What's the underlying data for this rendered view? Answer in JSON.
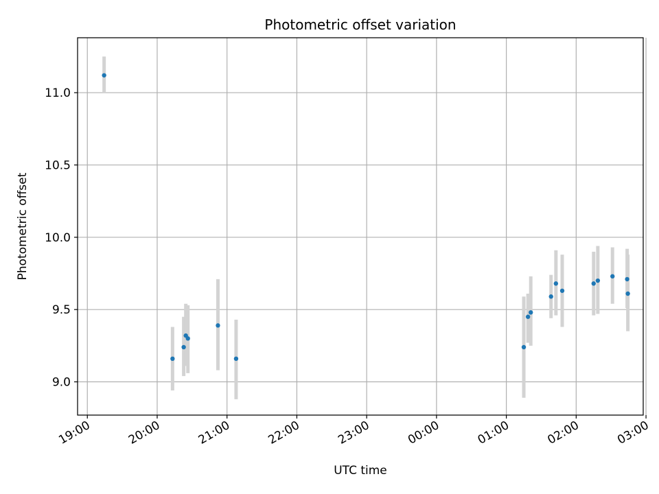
{
  "chart_data": {
    "type": "scatter",
    "title": "Photometric offset variation",
    "xlabel": "UTC time",
    "ylabel": "Photometric offset",
    "grid": true,
    "x_unit": "hours after 19:00 UTC",
    "xlim": [
      -0.14,
      7.96
    ],
    "ylim": [
      8.77,
      11.38
    ],
    "x_ticks": [
      {
        "value": 0,
        "label": "19:00"
      },
      {
        "value": 1,
        "label": "20:00"
      },
      {
        "value": 2,
        "label": "21:00"
      },
      {
        "value": 3,
        "label": "22:00"
      },
      {
        "value": 4,
        "label": "23:00"
      },
      {
        "value": 5,
        "label": "00:00"
      },
      {
        "value": 6,
        "label": "01:00"
      },
      {
        "value": 7,
        "label": "02:00"
      },
      {
        "value": 8,
        "label": "03:00"
      }
    ],
    "y_ticks": [
      {
        "value": 9.0,
        "label": "9.0"
      },
      {
        "value": 9.5,
        "label": "9.5"
      },
      {
        "value": 10.0,
        "label": "10.0"
      },
      {
        "value": 10.5,
        "label": "10.5"
      },
      {
        "value": 11.0,
        "label": "11.0"
      }
    ],
    "series": [
      {
        "name": "Photometric offset",
        "color": "#1f77b4",
        "errorbar_color": "#d3d3d3",
        "points": [
          {
            "x": 0.24,
            "y": 11.12,
            "lo": 11.0,
            "hi": 11.25
          },
          {
            "x": 1.22,
            "y": 9.16,
            "lo": 8.94,
            "hi": 9.38
          },
          {
            "x": 1.38,
            "y": 9.24,
            "lo": 9.04,
            "hi": 9.45
          },
          {
            "x": 1.41,
            "y": 9.32,
            "lo": 9.11,
            "hi": 9.54
          },
          {
            "x": 1.44,
            "y": 9.3,
            "lo": 9.06,
            "hi": 9.53
          },
          {
            "x": 1.87,
            "y": 9.39,
            "lo": 9.08,
            "hi": 9.71
          },
          {
            "x": 2.13,
            "y": 9.16,
            "lo": 8.88,
            "hi": 9.43
          },
          {
            "x": 6.25,
            "y": 9.24,
            "lo": 8.89,
            "hi": 9.59
          },
          {
            "x": 6.31,
            "y": 9.45,
            "lo": 9.27,
            "hi": 9.61
          },
          {
            "x": 6.35,
            "y": 9.48,
            "lo": 9.25,
            "hi": 9.73
          },
          {
            "x": 6.64,
            "y": 9.59,
            "lo": 9.44,
            "hi": 9.74
          },
          {
            "x": 6.71,
            "y": 9.68,
            "lo": 9.46,
            "hi": 9.91
          },
          {
            "x": 6.8,
            "y": 9.63,
            "lo": 9.38,
            "hi": 9.88
          },
          {
            "x": 7.25,
            "y": 9.68,
            "lo": 9.46,
            "hi": 9.9
          },
          {
            "x": 7.31,
            "y": 9.7,
            "lo": 9.47,
            "hi": 9.94
          },
          {
            "x": 7.52,
            "y": 9.73,
            "lo": 9.54,
            "hi": 9.93
          },
          {
            "x": 7.73,
            "y": 9.71,
            "lo": 9.51,
            "hi": 9.92
          },
          {
            "x": 7.74,
            "y": 9.61,
            "lo": 9.35,
            "hi": 9.88
          }
        ]
      }
    ]
  }
}
